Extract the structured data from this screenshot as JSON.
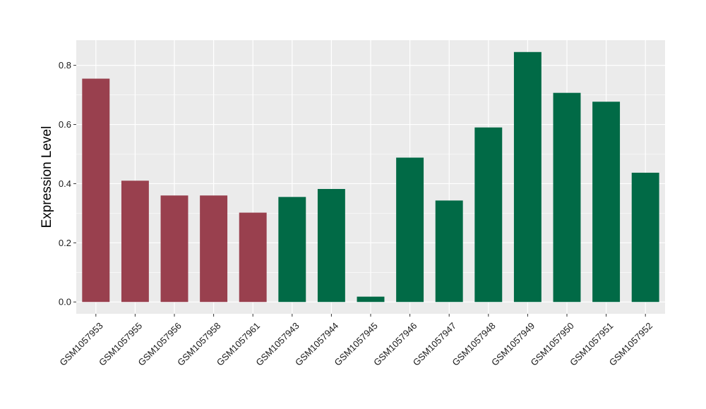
{
  "chart_data": {
    "type": "bar",
    "title": "",
    "xlabel": "",
    "ylabel": "Expression Level",
    "ylim": [
      -0.04,
      0.885
    ],
    "yticks": [
      0.0,
      0.2,
      0.4,
      0.6,
      0.8
    ],
    "ytick_labels": [
      "0.0",
      "0.2",
      "0.4",
      "0.6",
      "0.8"
    ],
    "grid": true,
    "legend": "none",
    "colors": {
      "group_a": "#99404E",
      "group_b": "#016A46",
      "panel_bg": "#EBEBEB",
      "grid": "#FFFFFF"
    },
    "categories": [
      "GSM1057953",
      "GSM1057955",
      "GSM1057956",
      "GSM1057958",
      "GSM1057961",
      "GSM1057943",
      "GSM1057944",
      "GSM1057945",
      "GSM1057946",
      "GSM1057947",
      "GSM1057948",
      "GSM1057949",
      "GSM1057950",
      "GSM1057951",
      "GSM1057952"
    ],
    "values": [
      0.755,
      0.41,
      0.36,
      0.36,
      0.302,
      0.355,
      0.382,
      0.018,
      0.488,
      0.343,
      0.59,
      0.845,
      0.707,
      0.677,
      0.437
    ],
    "groups": [
      "a",
      "a",
      "a",
      "a",
      "a",
      "b",
      "b",
      "b",
      "b",
      "b",
      "b",
      "b",
      "b",
      "b",
      "b"
    ]
  }
}
